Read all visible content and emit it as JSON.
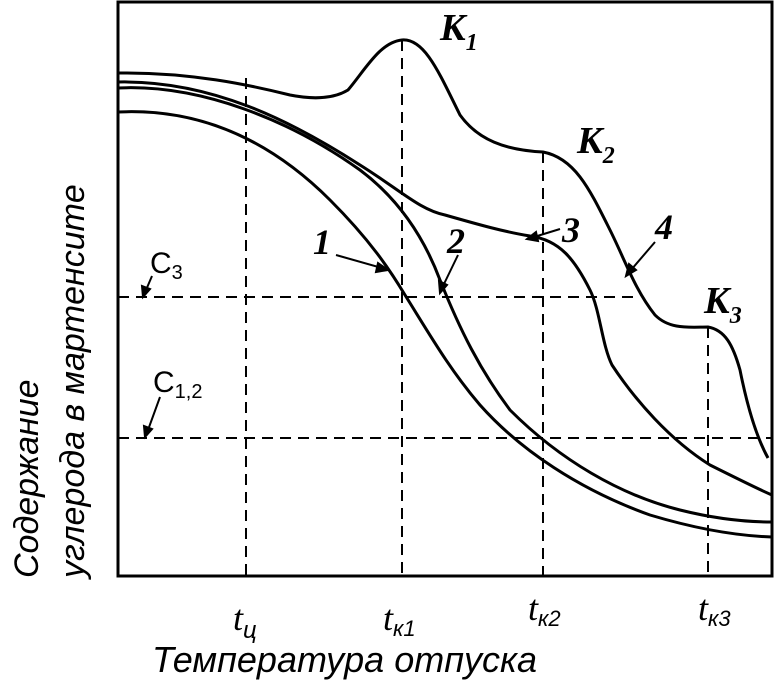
{
  "axes": {
    "ylabel_line1": "Содержание",
    "ylabel_line2": "углерода в мартенсите",
    "xlabel": "Температура отпуска"
  },
  "ticks": [
    {
      "base": "t",
      "sub": "ц"
    },
    {
      "base": "t",
      "sub": "к1"
    },
    {
      "base": "t",
      "sub": "к2"
    },
    {
      "base": "t",
      "sub": "к3"
    }
  ],
  "levels": [
    {
      "base": "С",
      "sub": "3"
    },
    {
      "base": "С",
      "sub": "1,2"
    }
  ],
  "peaks": [
    {
      "base": "К",
      "sub": "1"
    },
    {
      "base": "К",
      "sub": "2"
    },
    {
      "base": "К",
      "sub": "3"
    }
  ],
  "curve_labels": [
    "1",
    "2",
    "3",
    "4"
  ]
}
